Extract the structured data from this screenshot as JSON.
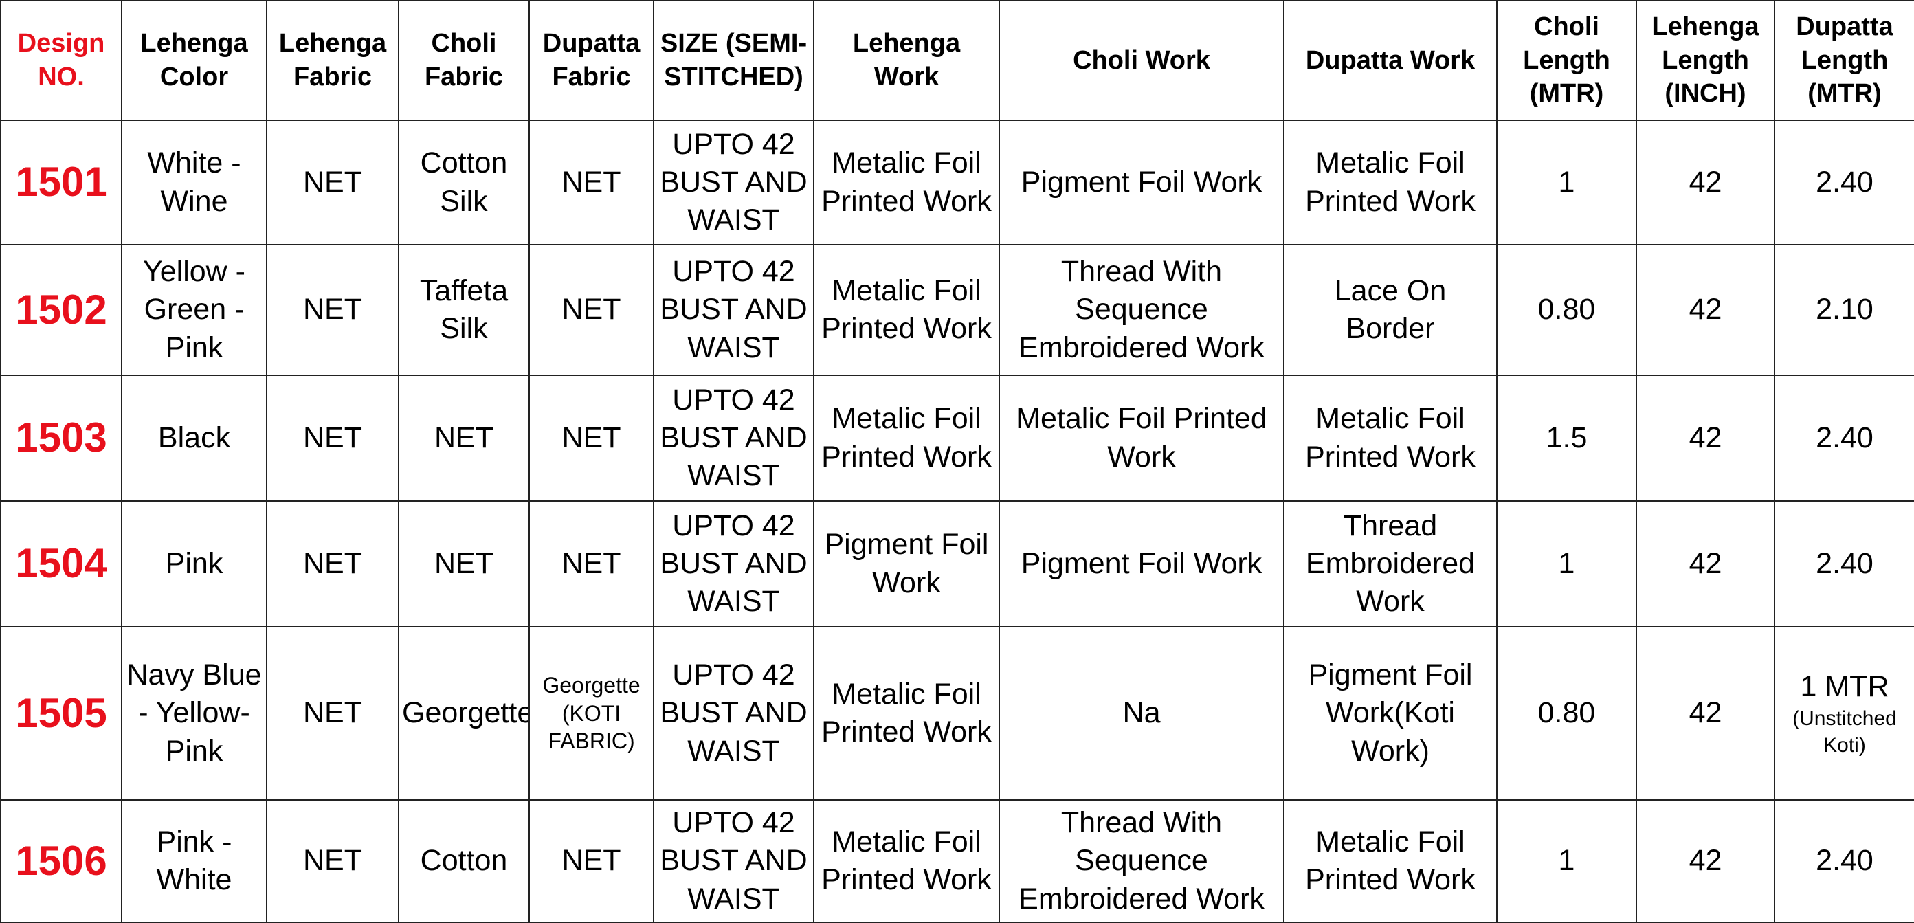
{
  "table": {
    "header": [
      "Design NO.",
      "Lehenga Color",
      "Lehenga Fabric",
      "Choli Fabric",
      "Dupatta Fabric",
      "SIZE (SEMI-STITCHED)",
      "Lehenga Work",
      "Choli Work",
      "Dupatta Work",
      "Choli Length (MTR)",
      "Lehenga Length (INCH)",
      "Dupatta Length (MTR)"
    ],
    "rows": [
      [
        "1501",
        "White - Wine",
        "NET",
        "Cotton Silk",
        "NET",
        "UPTO 42 BUST AND WAIST",
        "Metalic Foil Printed Work",
        "Pigment Foil Work",
        "Metalic Foil Printed Work",
        "1",
        "42",
        "2.40"
      ],
      [
        "1502",
        "Yellow - Green - Pink",
        "NET",
        "Taffeta Silk",
        "NET",
        "UPTO 42 BUST AND WAIST",
        "Metalic Foil Printed Work",
        "Thread With Sequence Embroidered Work",
        "Lace On Border",
        "0.80",
        "42",
        "2.10"
      ],
      [
        "1503",
        "Black",
        "NET",
        "NET",
        "NET",
        "UPTO 42 BUST AND WAIST",
        "Metalic Foil Printed Work",
        "Metalic Foil Printed Work",
        "Metalic Foil Printed Work",
        "1.5",
        "42",
        "2.40"
      ],
      [
        "1504",
        "Pink",
        "NET",
        "NET",
        "NET",
        "UPTO 42 BUST AND WAIST",
        "Pigment Foil Work",
        "Pigment Foil Work",
        "Thread Embroidered Work",
        "1",
        "42",
        "2.40"
      ],
      [
        "1505",
        "Navy Blue - Yellow- Pink",
        "NET",
        "Georgette",
        "Georgette (KOTI FABRIC)",
        "UPTO 42 BUST AND WAIST",
        "Metalic Foil Printed Work",
        "Na",
        "Pigment Foil Work(Koti Work)",
        "0.80",
        "42",
        [
          "1 MTR",
          "(Unstitched Koti)"
        ]
      ],
      [
        "1506",
        "Pink - White",
        "NET",
        "Cotton",
        "NET",
        "UPTO 42 BUST AND WAIST",
        "Metalic Foil Printed Work",
        "Thread With Sequence Embroidered Work",
        "Metalic Foil Printed Work",
        "1",
        "42",
        "2.40"
      ]
    ]
  }
}
